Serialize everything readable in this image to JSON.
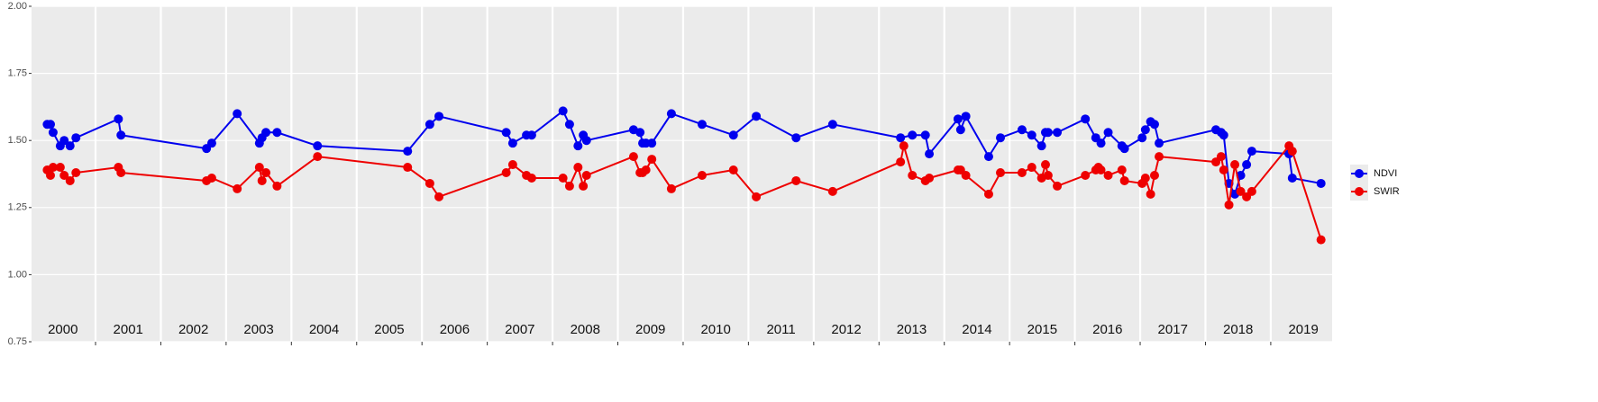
{
  "chart_data": {
    "type": "line",
    "xlim": [
      2000.02,
      2019.94
    ],
    "xticks": [
      2001,
      2002,
      2003,
      2004,
      2005,
      2006,
      2007,
      2008,
      2009,
      2010,
      2011,
      2012,
      2013,
      2014,
      2015,
      2016,
      2017,
      2018,
      2019
    ],
    "x_labels": [
      {
        "value": 2000.5,
        "label": "2000"
      },
      {
        "value": 2001.5,
        "label": "2001"
      },
      {
        "value": 2002.5,
        "label": "2002"
      },
      {
        "value": 2003.5,
        "label": "2003"
      },
      {
        "value": 2004.5,
        "label": "2004"
      },
      {
        "value": 2005.5,
        "label": "2005"
      },
      {
        "value": 2006.5,
        "label": "2006"
      },
      {
        "value": 2007.5,
        "label": "2007"
      },
      {
        "value": 2008.5,
        "label": "2008"
      },
      {
        "value": 2009.5,
        "label": "2009"
      },
      {
        "value": 2010.5,
        "label": "2010"
      },
      {
        "value": 2011.5,
        "label": "2011"
      },
      {
        "value": 2012.5,
        "label": "2012"
      },
      {
        "value": 2013.5,
        "label": "2013"
      },
      {
        "value": 2014.5,
        "label": "2014"
      },
      {
        "value": 2015.5,
        "label": "2015"
      },
      {
        "value": 2016.5,
        "label": "2016"
      },
      {
        "value": 2017.5,
        "label": "2017"
      },
      {
        "value": 2018.5,
        "label": "2018"
      },
      {
        "value": 2019.5,
        "label": "2019"
      }
    ],
    "ylim": [
      0.75,
      2.0
    ],
    "yticks": [
      0.75,
      {
        "value": 1.0,
        "label": "1.00"
      },
      1.25,
      {
        "value": 1.5,
        "label": "1.50"
      },
      1.75,
      {
        "value": 2.0,
        "label": "2.00"
      }
    ],
    "grid": true,
    "legend": "right",
    "series": [
      {
        "name": "NDVI",
        "color": "#0000ee",
        "x": [
          2000.26,
          2000.31,
          2000.35,
          2000.46,
          2000.52,
          2000.61,
          2000.7,
          2001.35,
          2001.39,
          2002.7,
          2002.78,
          2003.17,
          2003.51,
          2003.55,
          2003.61,
          2003.78,
          2004.4,
          2005.78,
          2006.12,
          2006.26,
          2007.29,
          2007.39,
          2007.6,
          2007.68,
          2008.16,
          2008.26,
          2008.39,
          2008.47,
          2008.52,
          2009.24,
          2009.34,
          2009.38,
          2009.43,
          2009.52,
          2009.82,
          2010.29,
          2010.77,
          2011.12,
          2011.73,
          2012.29,
          2013.33,
          2013.51,
          2013.71,
          2013.77,
          2014.21,
          2014.25,
          2014.33,
          2014.68,
          2014.86,
          2015.19,
          2015.34,
          2015.49,
          2015.55,
          2015.59,
          2015.73,
          2016.16,
          2016.32,
          2016.4,
          2016.51,
          2016.72,
          2016.76,
          2017.03,
          2017.08,
          2017.16,
          2017.22,
          2017.29,
          2018.16,
          2018.24,
          2018.28,
          2018.36,
          2018.45,
          2018.54,
          2018.63,
          2018.71,
          2019.28,
          2019.33,
          2019.77
        ],
        "values": [
          1.56,
          1.56,
          1.53,
          1.48,
          1.5,
          1.48,
          1.51,
          1.58,
          1.52,
          1.47,
          1.49,
          1.6,
          1.49,
          1.51,
          1.53,
          1.53,
          1.48,
          1.46,
          1.56,
          1.59,
          1.53,
          1.49,
          1.52,
          1.52,
          1.61,
          1.56,
          1.48,
          1.52,
          1.5,
          1.54,
          1.53,
          1.49,
          1.49,
          1.49,
          1.6,
          1.56,
          1.52,
          1.59,
          1.51,
          1.56,
          1.51,
          1.52,
          1.52,
          1.45,
          1.58,
          1.54,
          1.59,
          1.44,
          1.51,
          1.54,
          1.52,
          1.48,
          1.53,
          1.53,
          1.53,
          1.58,
          1.51,
          1.49,
          1.53,
          1.48,
          1.47,
          1.51,
          1.54,
          1.57,
          1.56,
          1.49,
          1.54,
          1.53,
          1.52,
          1.34,
          1.3,
          1.37,
          1.41,
          1.46,
          1.45,
          1.36,
          1.34
        ]
      },
      {
        "name": "SWIR",
        "color": "#ee0000",
        "x": [
          2000.26,
          2000.31,
          2000.35,
          2000.46,
          2000.52,
          2000.61,
          2000.7,
          2001.35,
          2001.39,
          2002.7,
          2002.78,
          2003.17,
          2003.51,
          2003.55,
          2003.61,
          2003.78,
          2004.4,
          2005.78,
          2006.12,
          2006.26,
          2007.29,
          2007.39,
          2007.6,
          2007.68,
          2008.16,
          2008.26,
          2008.39,
          2008.47,
          2008.52,
          2009.24,
          2009.34,
          2009.38,
          2009.43,
          2009.52,
          2009.82,
          2010.29,
          2010.77,
          2011.12,
          2011.73,
          2012.29,
          2013.33,
          2013.38,
          2013.51,
          2013.71,
          2013.77,
          2014.21,
          2014.25,
          2014.33,
          2014.68,
          2014.86,
          2015.19,
          2015.34,
          2015.49,
          2015.55,
          2015.59,
          2015.73,
          2016.16,
          2016.32,
          2016.36,
          2016.4,
          2016.51,
          2016.72,
          2016.76,
          2017.03,
          2017.08,
          2017.16,
          2017.22,
          2017.29,
          2018.16,
          2018.24,
          2018.28,
          2018.36,
          2018.45,
          2018.54,
          2018.63,
          2018.71,
          2019.28,
          2019.33,
          2019.77
        ],
        "values": [
          1.39,
          1.37,
          1.4,
          1.4,
          1.37,
          1.35,
          1.38,
          1.4,
          1.38,
          1.35,
          1.36,
          1.32,
          1.4,
          1.35,
          1.38,
          1.33,
          1.44,
          1.4,
          1.34,
          1.29,
          1.38,
          1.41,
          1.37,
          1.36,
          1.36,
          1.33,
          1.4,
          1.33,
          1.37,
          1.44,
          1.38,
          1.38,
          1.39,
          1.43,
          1.32,
          1.37,
          1.39,
          1.29,
          1.35,
          1.31,
          1.42,
          1.48,
          1.37,
          1.35,
          1.36,
          1.39,
          1.39,
          1.37,
          1.3,
          1.38,
          1.38,
          1.4,
          1.36,
          1.41,
          1.37,
          1.33,
          1.37,
          1.39,
          1.4,
          1.39,
          1.37,
          1.39,
          1.35,
          1.34,
          1.36,
          1.3,
          1.37,
          1.44,
          1.42,
          1.44,
          1.39,
          1.26,
          1.41,
          1.31,
          1.29,
          1.31,
          1.48,
          1.46,
          1.13
        ]
      }
    ]
  }
}
